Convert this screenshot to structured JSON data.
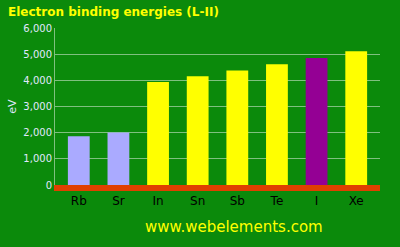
{
  "chart_data": {
    "type": "bar",
    "title": "Electron binding energies (L-II)",
    "categories": [
      "Rb",
      "Sr",
      "In",
      "Sn",
      "Sb",
      "Te",
      "I",
      "Xe"
    ],
    "values": [
      1864,
      2007,
      3938,
      4156,
      4380,
      4612,
      4852,
      5107
    ],
    "colors": [
      "#aaaaff",
      "#aaaaff",
      "#ffff00",
      "#ffff00",
      "#ffff00",
      "#ffff00",
      "#940094",
      "#ffff00"
    ],
    "y_label": "eV",
    "ylim": [
      0,
      6000
    ],
    "yticks": [
      0,
      {
        "value": 1000,
        "label": "1,000"
      },
      {
        "value": 2000,
        "label": "2,000"
      },
      {
        "value": 3000,
        "label": "3,000"
      },
      {
        "value": 4000,
        "label": "4,000"
      },
      {
        "value": 5000,
        "label": "5,000"
      },
      {
        "value": 6000,
        "label": "6,000"
      }
    ],
    "annotations": [
      "www.webelements.com"
    ],
    "grid": true
  }
}
